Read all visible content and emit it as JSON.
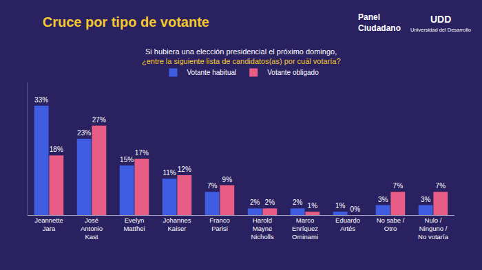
{
  "chart_data": {
    "type": "bar",
    "title": "Cruce por tipo de votante",
    "subtitle": [
      "Si hubiera una elección presidencial el próximo domingo,",
      "¿entre la siguiente lista de candidatos(as) por cuál votaría?"
    ],
    "annotations": [
      "Panel\nCiudadano",
      "UDD",
      "Universidad del Desarrollo"
    ],
    "categories": [
      "Jeannette\nJara",
      "José\nAntonio\nKast",
      "Evelyn\nMatthei",
      "Johannes\nKaiser",
      "Franco\nParisi",
      "Harold\nMayne\nNicholls",
      "Marco\nEnríquez\nOminami",
      "Eduardo\nArtés",
      "No sabe /\nOtro",
      "Nulo /\nNinguno /\nNo votaría"
    ],
    "series": [
      {
        "name": "Votante habitual",
        "color": "#3f5de0",
        "values": [
          33,
          23,
          15,
          11,
          7,
          2,
          2,
          1,
          3,
          3
        ],
        "value_labels": [
          "33%",
          "23%",
          "15%",
          "11%",
          "7%",
          "2%",
          "2%",
          "1%",
          "3%",
          "3%"
        ]
      },
      {
        "name": "Votante obligado",
        "color": "#e85d86",
        "values": [
          18,
          27,
          17,
          12,
          9,
          2,
          1,
          0,
          7,
          7
        ],
        "value_labels": [
          "18%",
          "27%",
          "17%",
          "12%",
          "9%",
          "2%",
          "1%",
          "0%",
          "7%",
          "7%"
        ]
      }
    ],
    "ylim": [
      0,
      40
    ],
    "yticks": [
      0
    ],
    "grid": false,
    "legend": "top",
    "data_labels": true,
    "tick_labels": "x"
  }
}
